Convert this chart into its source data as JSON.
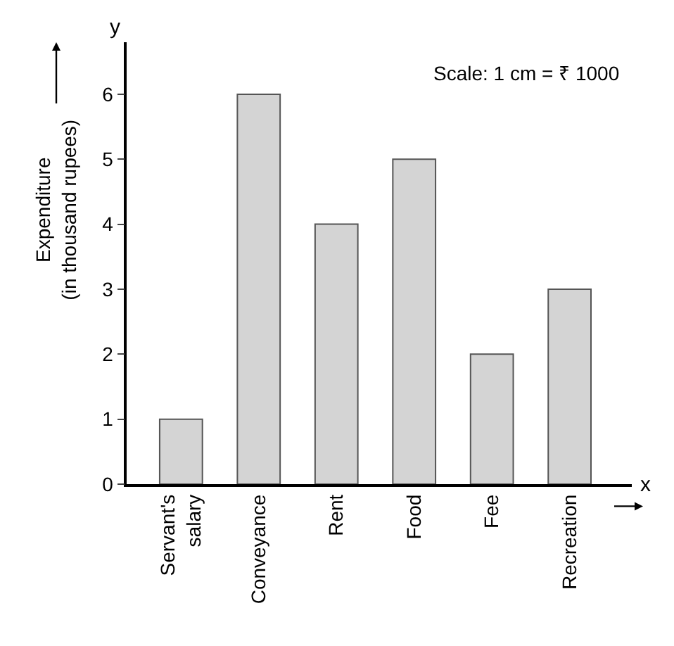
{
  "chart_data": {
    "type": "bar",
    "categories": [
      "Servant's salary",
      "Conveyance",
      "Rent",
      "Food",
      "Fee",
      "Recreation"
    ],
    "values": [
      1,
      6,
      4,
      5,
      2,
      3
    ],
    "color": "#d4d4d4",
    "ylabel": "Expenditure\n(in thousand rupees)",
    "xlabel": "x",
    "annotations": [
      "y",
      "Scale: 1 cm = ₹ 1000"
    ],
    "ylim": [
      0,
      6.8
    ],
    "yticks": [
      0,
      1,
      2,
      3,
      4,
      5,
      6
    ],
    "grid": false
  }
}
